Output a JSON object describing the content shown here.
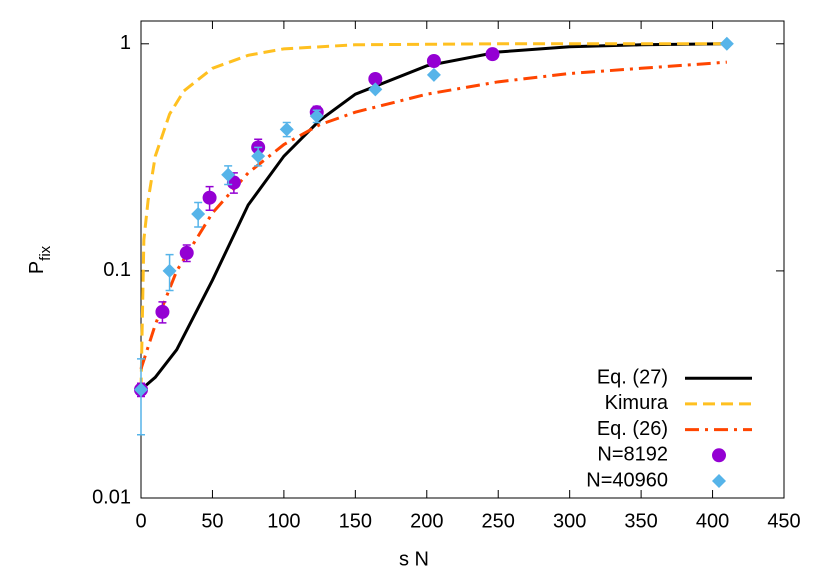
{
  "chart_data": {
    "type": "line",
    "xlabel": "s N",
    "ylabel": "P",
    "ylabel_sub": "fix",
    "xlim": [
      0,
      450
    ],
    "ylim": [
      0.01,
      1.26
    ],
    "log_y": true,
    "xticks": [
      0,
      50,
      100,
      150,
      200,
      250,
      300,
      350,
      400,
      450
    ],
    "yticks": [
      0.01,
      0.1,
      1
    ],
    "legend": "bottom-right",
    "series": [
      {
        "name": "Eq. (27)",
        "kind": "line",
        "color": "#000000",
        "dash": "solid",
        "x": [
          0,
          10,
          25,
          50,
          75,
          100,
          125,
          150,
          200,
          250,
          300,
          350,
          410
        ],
        "values": [
          0.03,
          0.034,
          0.045,
          0.091,
          0.195,
          0.32,
          0.46,
          0.6,
          0.8,
          0.92,
          0.97,
          0.99,
          1.0
        ]
      },
      {
        "name": "Kimura",
        "kind": "line",
        "color": "#ffc020",
        "dash": "dashed",
        "x": [
          0,
          2,
          5,
          10,
          20,
          30,
          50,
          75,
          100,
          150,
          250,
          410
        ],
        "values": [
          0.03,
          0.137,
          0.205,
          0.32,
          0.49,
          0.62,
          0.78,
          0.89,
          0.95,
          0.99,
          1.0,
          1.0
        ]
      },
      {
        "name": "Eq. (26)",
        "kind": "line",
        "color": "#ff4500",
        "dash": "dashdot",
        "x": [
          0,
          10,
          25,
          50,
          75,
          100,
          125,
          150,
          200,
          250,
          300,
          350,
          410
        ],
        "values": [
          0.037,
          0.058,
          0.1,
          0.18,
          0.27,
          0.36,
          0.44,
          0.5,
          0.6,
          0.68,
          0.74,
          0.78,
          0.83
        ]
      },
      {
        "name": "N=8192",
        "kind": "scatter",
        "marker": "circle",
        "color": "#9400d3",
        "x": [
          0,
          15,
          32,
          48,
          65,
          82,
          123,
          164,
          205,
          246
        ],
        "values": [
          0.03,
          0.066,
          0.12,
          0.21,
          0.245,
          0.35,
          0.5,
          0.7,
          0.84,
          0.9
        ],
        "errors": [
          0.002,
          0.007,
          0.01,
          0.025,
          0.025,
          0.03,
          0.03,
          0.01,
          0.01,
          0.01
        ]
      },
      {
        "name": "N=40960",
        "kind": "scatter",
        "marker": "diamond",
        "color": "#56b4e9",
        "x": [
          0,
          20,
          40,
          61,
          82,
          102,
          123,
          164,
          205,
          410
        ],
        "values": [
          0.03,
          0.1,
          0.178,
          0.265,
          0.32,
          0.42,
          0.48,
          0.63,
          0.73,
          1.0
        ],
        "errors": [
          0.011,
          0.018,
          0.022,
          0.025,
          0.03,
          0.03,
          0.03,
          0.01,
          0.01,
          0.005
        ]
      }
    ]
  }
}
